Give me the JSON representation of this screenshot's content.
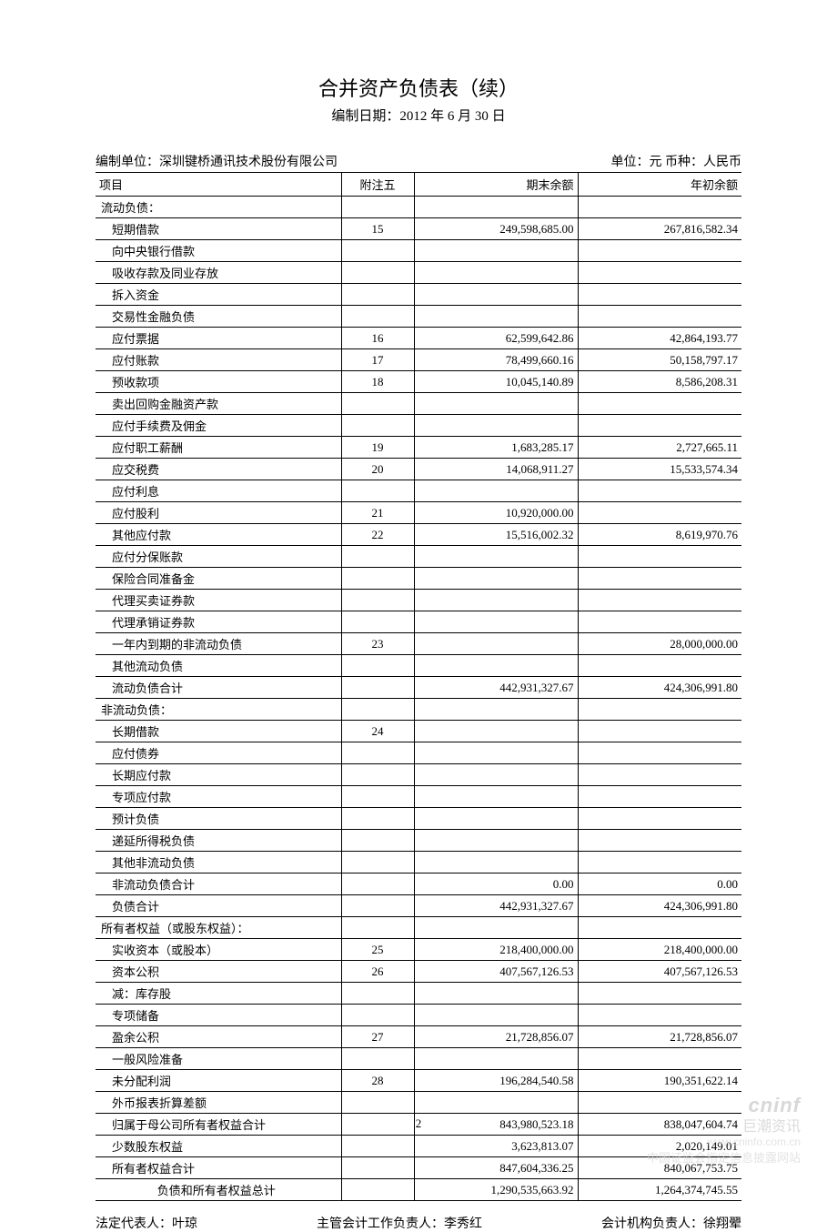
{
  "title": "合并资产负债表（续）",
  "subtitle": "编制日期：2012 年 6 月 30 日",
  "org_label": "编制单位：深圳键桥通讯技术股份有限公司",
  "unit_label": "单位：元  币种：人民币",
  "columns": {
    "item": "项目",
    "note": "附注五",
    "end": "期末余额",
    "begin": "年初余额"
  },
  "rows": [
    {
      "item": "流动负债：",
      "note": "",
      "end": "",
      "begin": "",
      "indent": 0
    },
    {
      "item": "短期借款",
      "note": "15",
      "end": "249,598,685.00",
      "begin": "267,816,582.34",
      "indent": 1
    },
    {
      "item": "向中央银行借款",
      "note": "",
      "end": "",
      "begin": "",
      "indent": 1
    },
    {
      "item": "吸收存款及同业存放",
      "note": "",
      "end": "",
      "begin": "",
      "indent": 1
    },
    {
      "item": "拆入资金",
      "note": "",
      "end": "",
      "begin": "",
      "indent": 1
    },
    {
      "item": "交易性金融负债",
      "note": "",
      "end": "",
      "begin": "",
      "indent": 1
    },
    {
      "item": "应付票据",
      "note": "16",
      "end": "62,599,642.86",
      "begin": "42,864,193.77",
      "indent": 1
    },
    {
      "item": "应付账款",
      "note": "17",
      "end": "78,499,660.16",
      "begin": "50,158,797.17",
      "indent": 1
    },
    {
      "item": "预收款项",
      "note": "18",
      "end": "10,045,140.89",
      "begin": "8,586,208.31",
      "indent": 1
    },
    {
      "item": "卖出回购金融资产款",
      "note": "",
      "end": "",
      "begin": "",
      "indent": 1
    },
    {
      "item": "应付手续费及佣金",
      "note": "",
      "end": "",
      "begin": "",
      "indent": 1
    },
    {
      "item": "应付职工薪酬",
      "note": "19",
      "end": "1,683,285.17",
      "begin": "2,727,665.11",
      "indent": 1
    },
    {
      "item": "应交税费",
      "note": "20",
      "end": "14,068,911.27",
      "begin": "15,533,574.34",
      "indent": 1
    },
    {
      "item": "应付利息",
      "note": "",
      "end": "",
      "begin": "",
      "indent": 1
    },
    {
      "item": "应付股利",
      "note": "21",
      "end": "10,920,000.00",
      "begin": "",
      "indent": 1
    },
    {
      "item": "其他应付款",
      "note": "22",
      "end": "15,516,002.32",
      "begin": "8,619,970.76",
      "indent": 1
    },
    {
      "item": "应付分保账款",
      "note": "",
      "end": "",
      "begin": "",
      "indent": 1
    },
    {
      "item": "保险合同准备金",
      "note": "",
      "end": "",
      "begin": "",
      "indent": 1
    },
    {
      "item": "代理买卖证券款",
      "note": "",
      "end": "",
      "begin": "",
      "indent": 1
    },
    {
      "item": "代理承销证券款",
      "note": "",
      "end": "",
      "begin": "",
      "indent": 1
    },
    {
      "item": "一年内到期的非流动负债",
      "note": "23",
      "end": "",
      "begin": "28,000,000.00",
      "indent": 1
    },
    {
      "item": "其他流动负债",
      "note": "",
      "end": "",
      "begin": "",
      "indent": 1
    },
    {
      "item": "流动负债合计",
      "note": "",
      "end": "442,931,327.67",
      "begin": "424,306,991.80",
      "indent": 1
    },
    {
      "item": "非流动负债：",
      "note": "",
      "end": "",
      "begin": "",
      "indent": 0
    },
    {
      "item": "长期借款",
      "note": "24",
      "end": "",
      "begin": "",
      "indent": 1
    },
    {
      "item": "应付债券",
      "note": "",
      "end": "",
      "begin": "",
      "indent": 1
    },
    {
      "item": "长期应付款",
      "note": "",
      "end": "",
      "begin": "",
      "indent": 1
    },
    {
      "item": "专项应付款",
      "note": "",
      "end": "",
      "begin": "",
      "indent": 1
    },
    {
      "item": "预计负债",
      "note": "",
      "end": "",
      "begin": "",
      "indent": 1
    },
    {
      "item": "递延所得税负债",
      "note": "",
      "end": "",
      "begin": "",
      "indent": 1
    },
    {
      "item": "其他非流动负债",
      "note": "",
      "end": "",
      "begin": "",
      "indent": 1
    },
    {
      "item": "非流动负债合计",
      "note": "",
      "end": "0.00",
      "begin": "0.00",
      "indent": 1
    },
    {
      "item": "负债合计",
      "note": "",
      "end": "442,931,327.67",
      "begin": "424,306,991.80",
      "indent": 1
    },
    {
      "item": "所有者权益（或股东权益）：",
      "note": "",
      "end": "",
      "begin": "",
      "indent": 0
    },
    {
      "item": "实收资本（或股本）",
      "note": "25",
      "end": "218,400,000.00",
      "begin": "218,400,000.00",
      "indent": 1
    },
    {
      "item": "资本公积",
      "note": "26",
      "end": "407,567,126.53",
      "begin": "407,567,126.53",
      "indent": 1
    },
    {
      "item": "减：库存股",
      "note": "",
      "end": "",
      "begin": "",
      "indent": 1
    },
    {
      "item": "专项储备",
      "note": "",
      "end": "",
      "begin": "",
      "indent": 1
    },
    {
      "item": "盈余公积",
      "note": "27",
      "end": "21,728,856.07",
      "begin": "21,728,856.07",
      "indent": 1
    },
    {
      "item": "一般风险准备",
      "note": "",
      "end": "",
      "begin": "",
      "indent": 1
    },
    {
      "item": "未分配利润",
      "note": "28",
      "end": "196,284,540.58",
      "begin": "190,351,622.14",
      "indent": 1
    },
    {
      "item": "外币报表折算差额",
      "note": "",
      "end": "",
      "begin": "",
      "indent": 1
    },
    {
      "item": "归属于母公司所有者权益合计",
      "note": "",
      "end": "843,980,523.18",
      "begin": "838,047,604.74",
      "indent": 1
    },
    {
      "item": "少数股东权益",
      "note": "",
      "end": "3,623,813.07",
      "begin": "2,020,149.01",
      "indent": 1
    },
    {
      "item": "所有者权益合计",
      "note": "",
      "end": "847,604,336.25",
      "begin": "840,067,753.75",
      "indent": 1
    },
    {
      "item": "负债和所有者权益总计",
      "note": "",
      "end": "1,290,535,663.92",
      "begin": "1,264,374,745.55",
      "indent": 1,
      "center": true
    }
  ],
  "footer": {
    "legal": "法定代表人：叶琼",
    "accounting_lead": "主管会计工作负责人：李秀红",
    "accounting_org": "会计机构负责人：徐翔翚"
  },
  "page_number": "2",
  "watermark": {
    "logo": "cninf",
    "cn": "巨潮资讯",
    "url": "www.cninfo.com.cn",
    "desc": "中国证监会指定信息披露网站"
  }
}
